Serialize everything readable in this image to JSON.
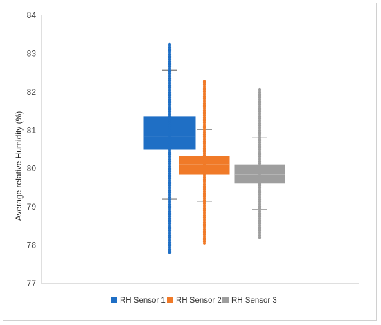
{
  "chart_data": {
    "type": "box",
    "ylabel": "Average relative Humidity (%)",
    "ylim": [
      77,
      84
    ],
    "yticks": [
      77,
      78,
      79,
      80,
      81,
      82,
      83,
      84
    ],
    "grid": false,
    "legend_position": "bottom",
    "series": [
      {
        "name": "RH Sensor 1",
        "color": "#1f6fc5",
        "whisker_low": 79.2,
        "q1": 80.5,
        "median": 80.85,
        "q3": 81.35,
        "whisker_high": 82.57,
        "outliers_low_range": [
          77.8,
          79.2
        ],
        "outliers_high_range": [
          82.57,
          83.25
        ]
      },
      {
        "name": "RH Sensor 2",
        "color": "#f07a28",
        "whisker_low": 79.15,
        "q1": 79.85,
        "median": 80.1,
        "q3": 80.32,
        "whisker_high": 81.02,
        "outliers_low_range": [
          78.05,
          79.15
        ],
        "outliers_high_range": [
          81.02,
          82.32
        ]
      },
      {
        "name": "RH Sensor 3",
        "color": "#9e9e9e",
        "whisker_low": 78.93,
        "q1": 79.62,
        "median": 79.85,
        "q3": 80.1,
        "whisker_high": 80.8,
        "outliers_low_range": [
          78.2,
          78.93
        ],
        "outliers_high_range": [
          80.8,
          82.1
        ]
      }
    ]
  }
}
